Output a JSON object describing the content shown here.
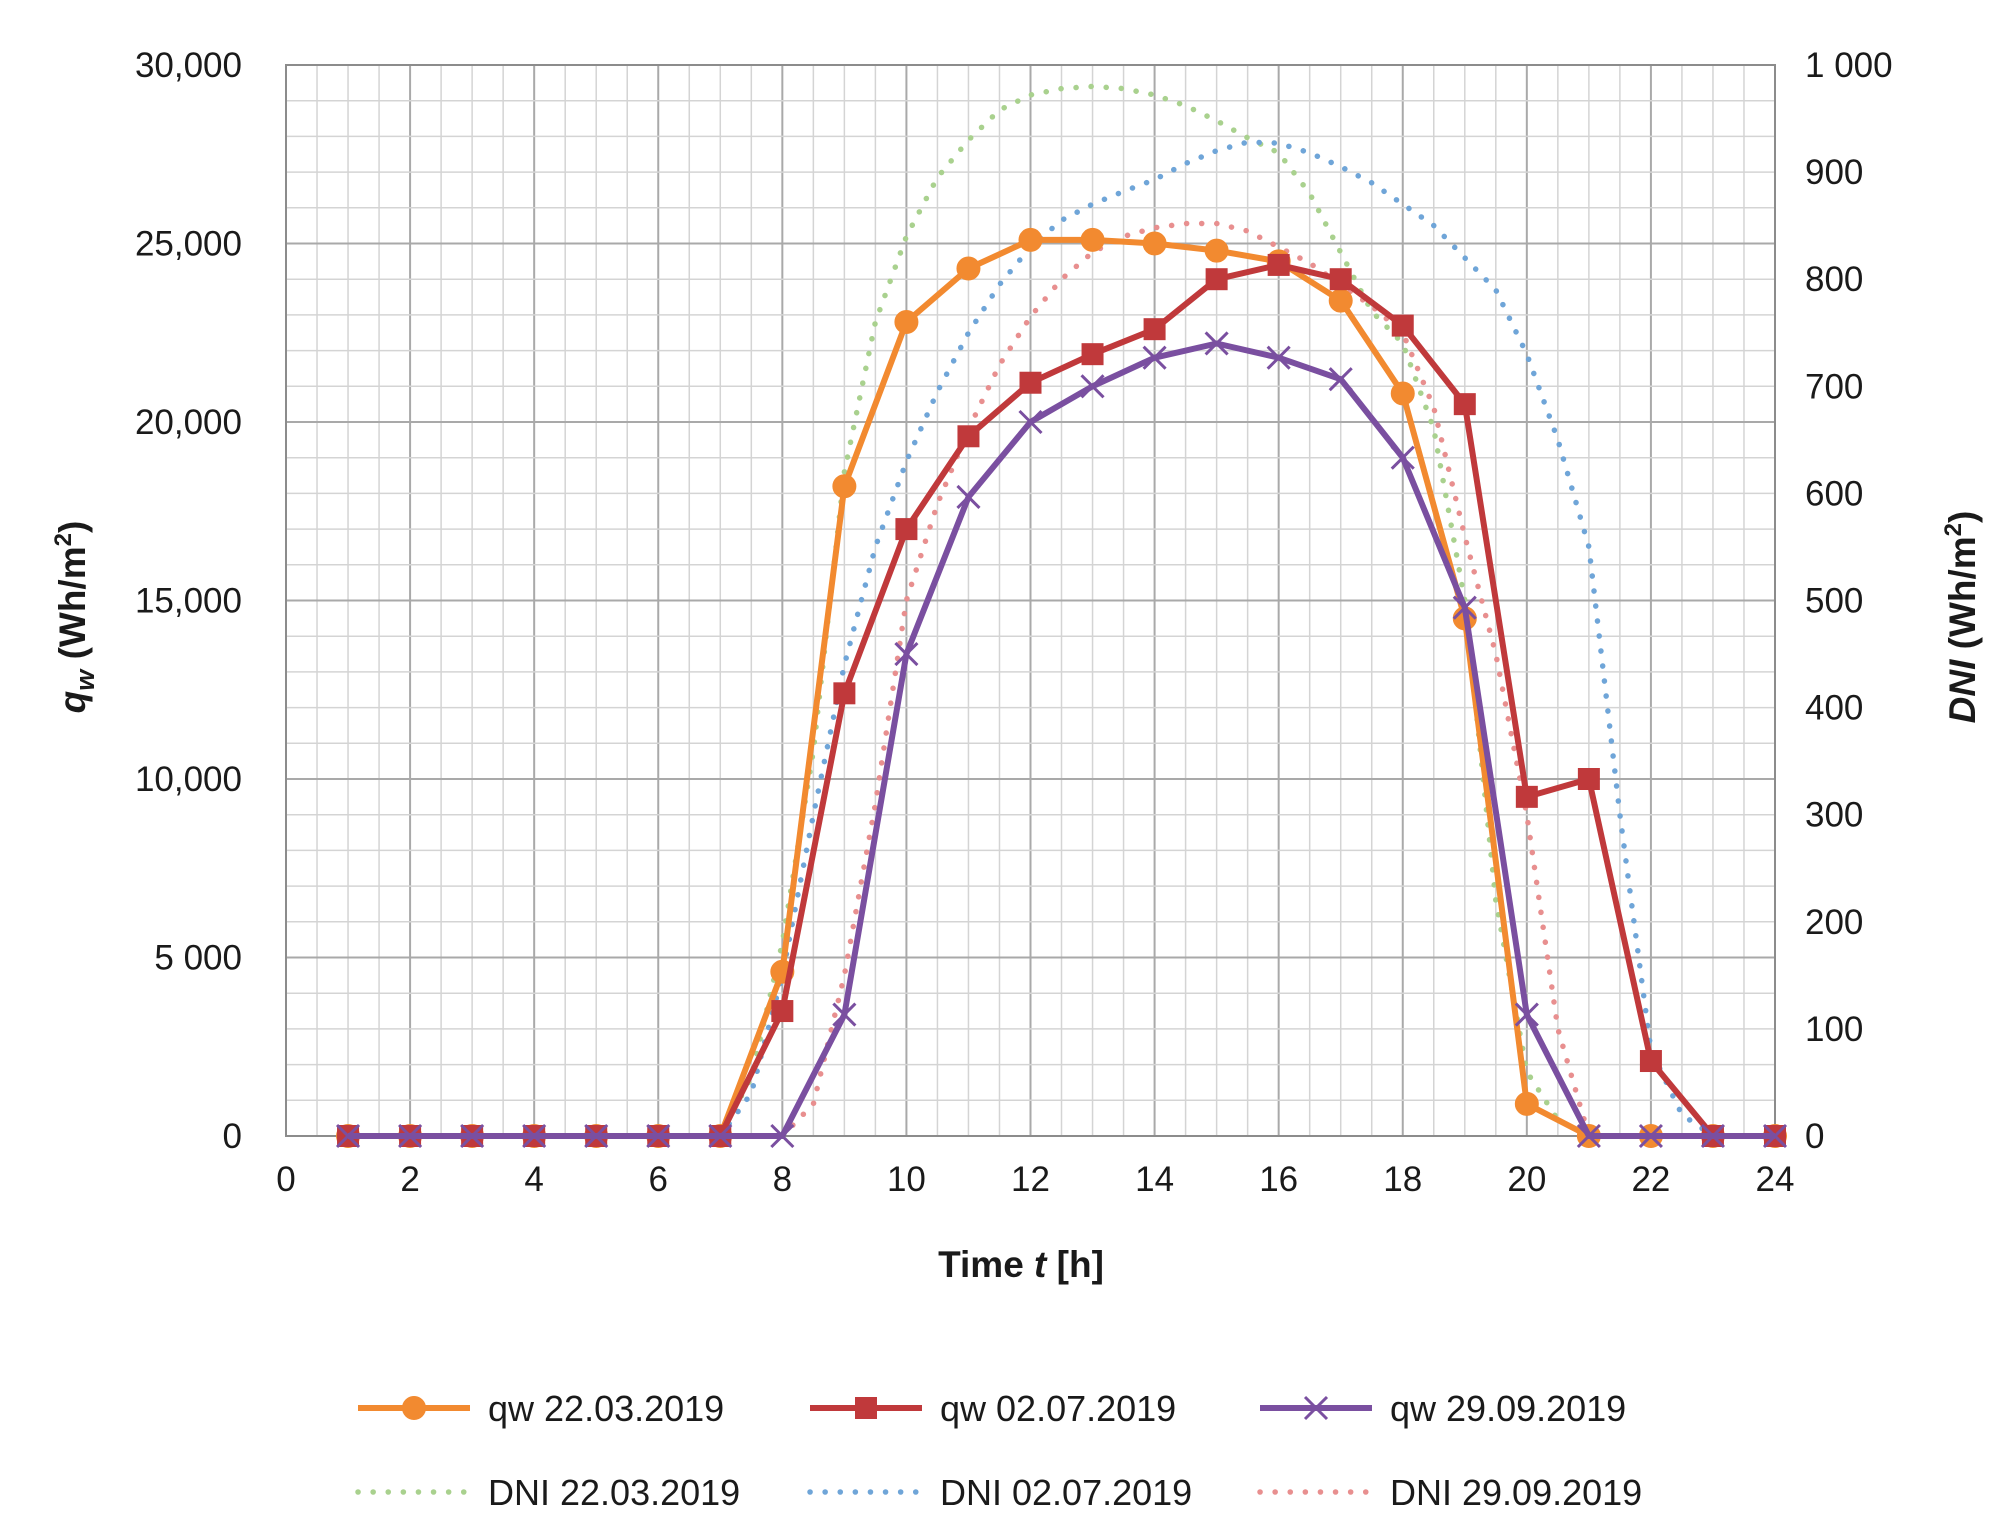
{
  "chart_data": {
    "type": "line",
    "title": "",
    "xlabel_prefix": "Time ",
    "xlabel_var": "t",
    "xlabel_suffix": " [h]",
    "ylabel_var": "q",
    "ylabel_sub": "w",
    "ylabel_unit": " (Wh/m",
    "ylabel_sup": "2",
    "ylabel_close": ")",
    "y2label_var": "DNI",
    "y2label_unit": " (Wh/m",
    "y2label_sup": "2",
    "y2label_close": ")",
    "xlim": [
      0,
      24
    ],
    "ylim": [
      0,
      30000
    ],
    "y2lim": [
      0,
      1000
    ],
    "x_ticks": [
      "0",
      "2",
      "4",
      "6",
      "8",
      "10",
      "12",
      "14",
      "16",
      "18",
      "20",
      "22",
      "24"
    ],
    "y_ticks": [
      "0",
      "5 000",
      "10,000",
      "15,000",
      "20,000",
      "25,000",
      "30,000"
    ],
    "y2_ticks": [
      "0",
      "100",
      "200",
      "300",
      "400",
      "500",
      "600",
      "700",
      "800",
      "900",
      "1 000"
    ],
    "grid": true,
    "legend_position": "bottom",
    "series": [
      {
        "name": "qw 22.03.2019",
        "axis": "left",
        "style": "solid",
        "marker": "circle",
        "color": "#f28a30",
        "x": [
          1,
          2,
          3,
          4,
          5,
          6,
          7,
          8,
          9,
          10,
          11,
          12,
          13,
          14,
          15,
          16,
          17,
          18,
          19,
          20,
          21,
          22,
          23,
          24
        ],
        "values": [
          0,
          0,
          0,
          0,
          0,
          0,
          0,
          4600,
          18200,
          22800,
          24300,
          25100,
          25100,
          25000,
          24800,
          24500,
          23400,
          20800,
          14500,
          900,
          0,
          0,
          0,
          0
        ]
      },
      {
        "name": "qw 02.07.2019",
        "axis": "left",
        "style": "solid",
        "marker": "square",
        "color": "#c0393b",
        "x": [
          1,
          2,
          3,
          4,
          5,
          6,
          7,
          8,
          9,
          10,
          11,
          12,
          13,
          14,
          15,
          16,
          17,
          18,
          19,
          20,
          21,
          22,
          23,
          24
        ],
        "values": [
          0,
          0,
          0,
          0,
          0,
          0,
          0,
          3500,
          12400,
          17000,
          19600,
          21100,
          21900,
          22600,
          24000,
          24400,
          24000,
          22700,
          20500,
          9500,
          10000,
          2100,
          0,
          0
        ]
      },
      {
        "name": "qw 29.09.2019",
        "axis": "left",
        "style": "solid",
        "marker": "x",
        "color": "#7a4fa0",
        "x": [
          1,
          2,
          3,
          4,
          5,
          6,
          7,
          8,
          9,
          10,
          11,
          12,
          13,
          14,
          15,
          16,
          17,
          18,
          19,
          20,
          21,
          22,
          23,
          24
        ],
        "values": [
          0,
          0,
          0,
          0,
          0,
          0,
          0,
          0,
          3400,
          13500,
          17900,
          20000,
          21000,
          21800,
          22200,
          21800,
          21200,
          19000,
          14800,
          3400,
          0,
          0,
          0,
          0
        ]
      },
      {
        "name": "DNI 22.03.2019",
        "axis": "right",
        "style": "dotted",
        "marker": "none",
        "color": "#a9d18e",
        "x": [
          7,
          7.5,
          8,
          8.5,
          9,
          9.5,
          10,
          10.5,
          11,
          11.5,
          12,
          12.5,
          13,
          13.5,
          14,
          14.5,
          15,
          15.5,
          16,
          16.5,
          17,
          17.5,
          18,
          18.5,
          19,
          19.5,
          20,
          20.5,
          21
        ],
        "values": [
          0,
          55,
          180,
          360,
          620,
          760,
          840,
          895,
          930,
          958,
          972,
          978,
          980,
          978,
          972,
          962,
          948,
          932,
          918,
          880,
          825,
          770,
          740,
          660,
          500,
          220,
          60,
          15,
          0
        ]
      },
      {
        "name": "DNI 02.07.2019",
        "axis": "right",
        "style": "dotted",
        "marker": "none",
        "color": "#6fa5d8",
        "x": [
          7,
          7.5,
          8,
          8.5,
          9,
          9.5,
          10,
          10.5,
          11,
          11.5,
          12,
          12.5,
          13,
          13.5,
          14,
          14.5,
          15,
          15.5,
          16,
          16.5,
          17,
          17.5,
          18,
          18.5,
          19,
          19.5,
          20,
          20.5,
          21,
          21.5,
          22,
          22.5,
          23
        ],
        "values": [
          0,
          40,
          150,
          300,
          440,
          550,
          630,
          695,
          750,
          795,
          830,
          855,
          870,
          882,
          893,
          908,
          920,
          928,
          927,
          918,
          905,
          890,
          870,
          850,
          820,
          790,
          730,
          650,
          550,
          300,
          80,
          20,
          0
        ]
      },
      {
        "name": "DNI 29.09.2019",
        "axis": "right",
        "style": "dotted",
        "marker": "none",
        "color": "#e88f8f",
        "x": [
          8,
          8.5,
          9,
          9.5,
          10,
          10.5,
          11,
          11.5,
          12,
          12.5,
          13,
          13.5,
          14,
          14.5,
          15,
          15.5,
          16,
          16.5,
          17,
          17.5,
          18,
          18.5,
          19,
          19.5,
          20,
          20.5,
          21
        ],
        "values": [
          0,
          30,
          150,
          310,
          500,
          590,
          660,
          720,
          765,
          800,
          825,
          840,
          848,
          852,
          852,
          845,
          830,
          815,
          795,
          775,
          750,
          680,
          560,
          450,
          300,
          100,
          0
        ]
      }
    ]
  }
}
